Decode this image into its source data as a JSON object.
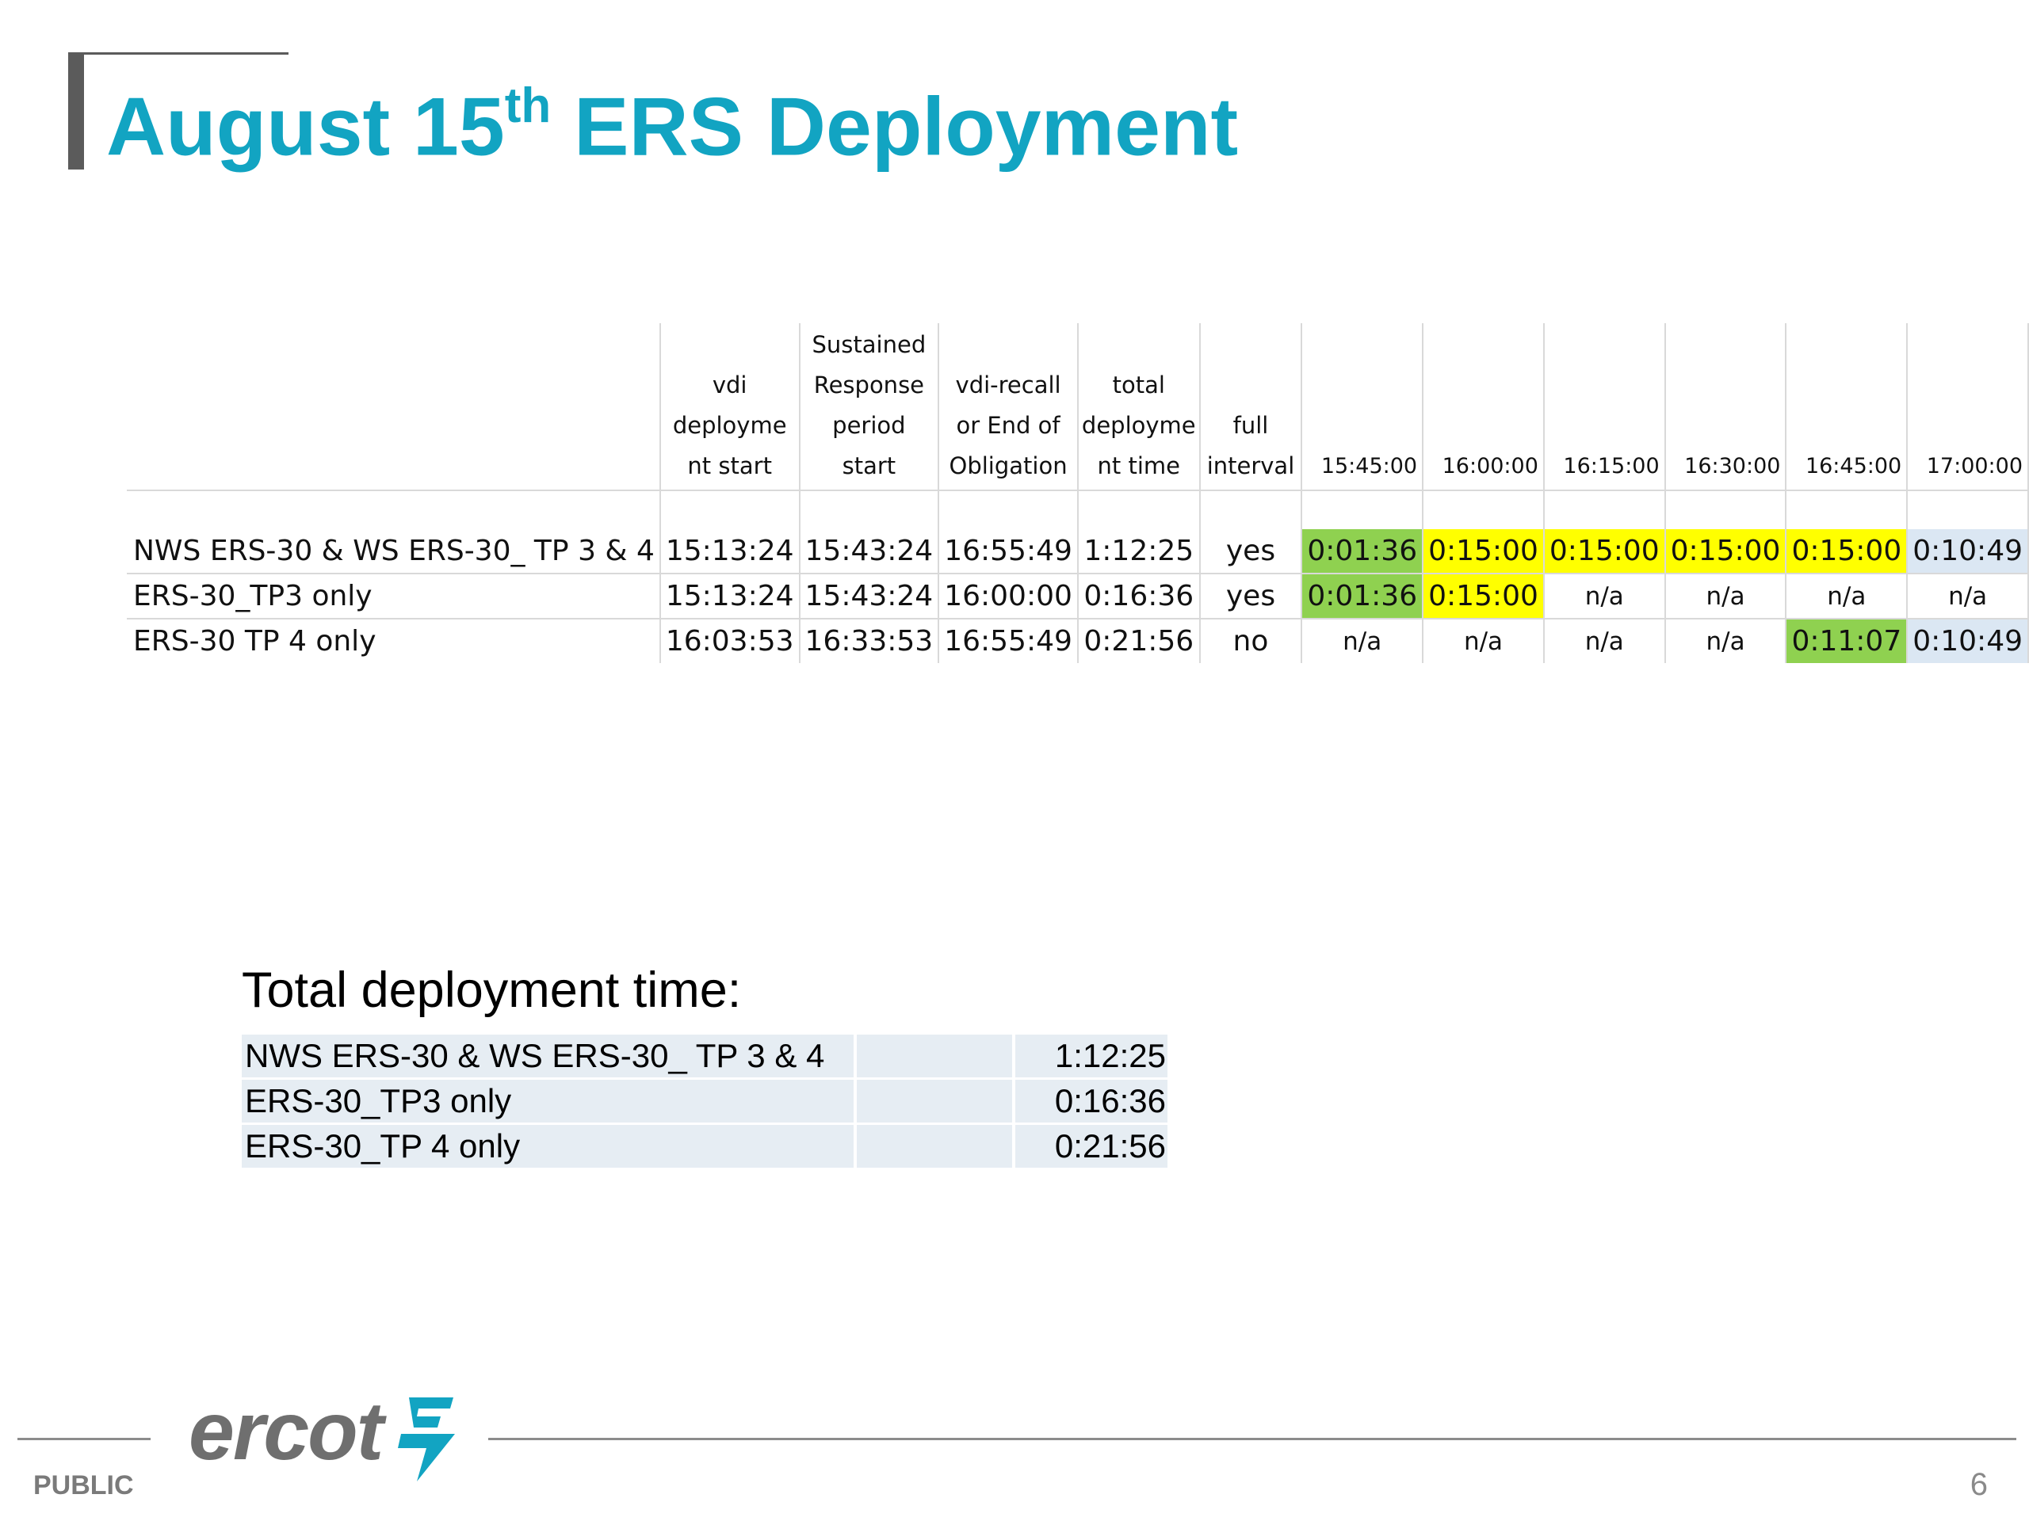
{
  "slide": {
    "title_pre": "August 15",
    "title_sup": "th",
    "title_post": " ERS Deployment",
    "accent_color": "#12a4c2",
    "page_number": "6",
    "classification": "PUBLIC",
    "logo_text": "ercot"
  },
  "main_table": {
    "headers": [
      "",
      "vdi deployme nt start",
      "Sustained Response period start",
      "vdi-recall or End of Obligation",
      "total deployme nt time",
      "full interval",
      "15:45:00",
      "16:00:00",
      "16:15:00",
      "16:30:00",
      "16:45:00",
      "17:00:00"
    ],
    "rows": [
      {
        "label": "NWS ERS-30 & WS ERS-30_ TP 3 & 4",
        "vdi_start": "15:13:24",
        "sustained_start": "15:43:24",
        "recall_end": "16:55:49",
        "total_time": "1:12:25",
        "full_interval": "yes",
        "intervals": [
          "0:01:36",
          "0:15:00",
          "0:15:00",
          "0:15:00",
          "0:15:00",
          "0:10:49"
        ],
        "interval_colors": [
          "green",
          "yellow",
          "yellow",
          "yellow",
          "yellow",
          "blue"
        ]
      },
      {
        "label": "ERS-30_TP3 only",
        "vdi_start": "15:13:24",
        "sustained_start": "15:43:24",
        "recall_end": "16:00:00",
        "total_time": "0:16:36",
        "full_interval": "yes",
        "intervals": [
          "0:01:36",
          "0:15:00",
          "n/a",
          "n/a",
          "n/a",
          "n/a"
        ],
        "interval_colors": [
          "green",
          "yellow",
          "",
          "",
          "",
          ""
        ]
      },
      {
        "label": "ERS-30  TP 4 only",
        "vdi_start": "16:03:53",
        "sustained_start": "16:33:53",
        "recall_end": "16:55:49",
        "total_time": "0:21:56",
        "full_interval": "no",
        "intervals": [
          "n/a",
          "n/a",
          "n/a",
          "n/a",
          "0:11:07",
          "0:10:49"
        ],
        "interval_colors": [
          "",
          "",
          "",
          "",
          "green",
          "blue"
        ]
      }
    ],
    "colors": {
      "green": "#8fd150",
      "yellow": "#ffff00",
      "blue": "#dbe7f3"
    }
  },
  "totals": {
    "heading": "Total deployment time:",
    "rows": [
      {
        "label": "NWS ERS-30 & WS ERS-30_ TP 3 & 4",
        "value": "1:12:25"
      },
      {
        "label": "ERS-30_TP3 only",
        "value": "0:16:36"
      },
      {
        "label": "ERS-30_TP 4 only",
        "value": "0:21:56"
      }
    ]
  }
}
